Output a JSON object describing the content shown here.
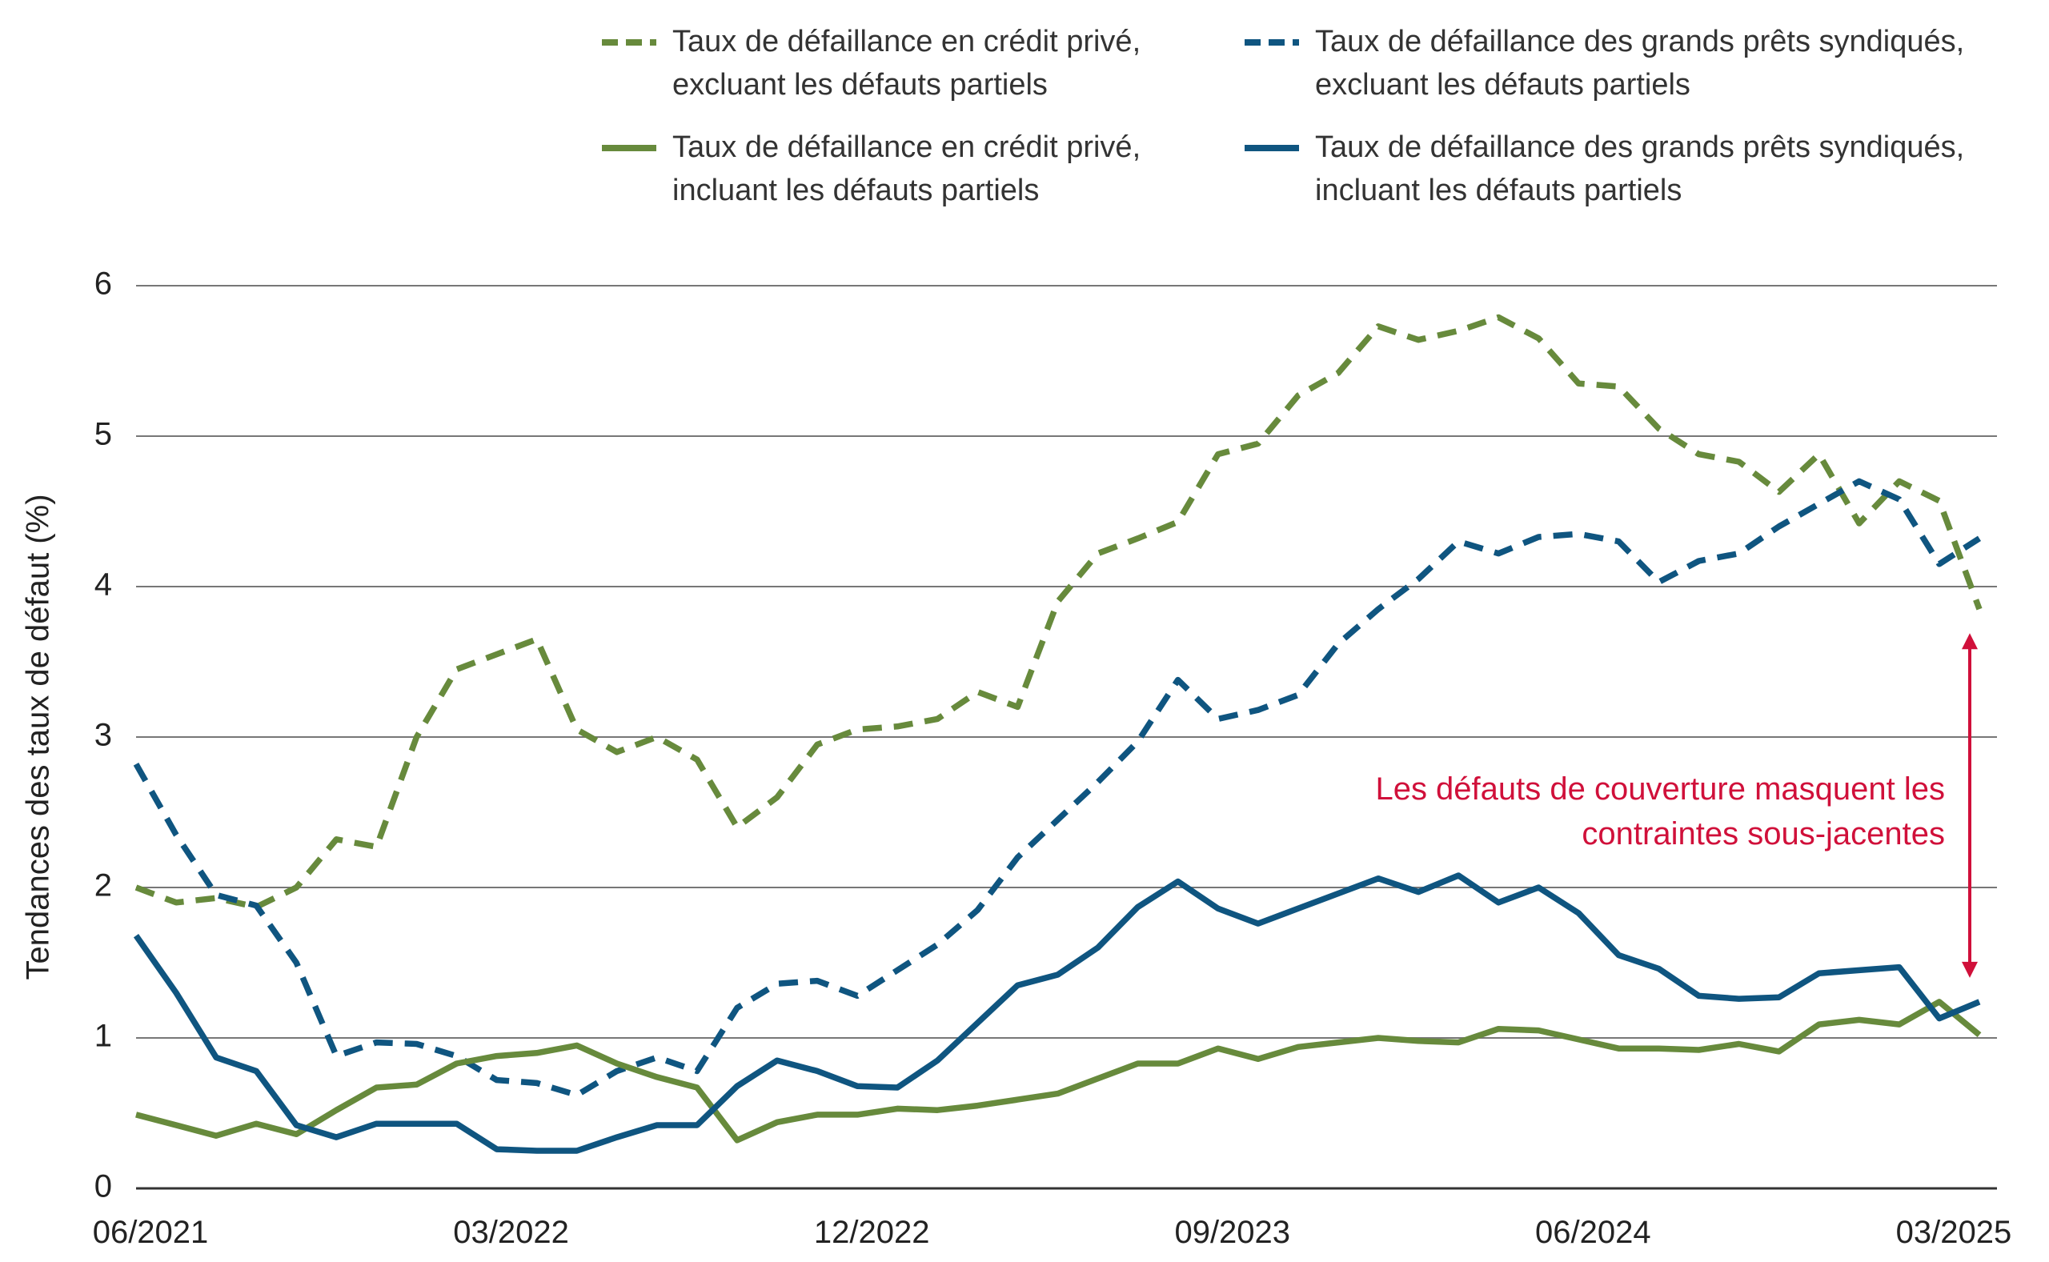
{
  "chart_data": {
    "type": "line",
    "y_label": "Tendances des taux de défaut (%)",
    "annotation": "Les défauts de couverture masquent les contraintes sous-jacentes",
    "categories": [
      "06/2021",
      null,
      null,
      null,
      null,
      null,
      null,
      null,
      null,
      "03/2022",
      null,
      null,
      null,
      null,
      null,
      null,
      null,
      null,
      "12/2022",
      null,
      null,
      null,
      null,
      null,
      null,
      null,
      null,
      "09/2023",
      null,
      null,
      null,
      null,
      null,
      null,
      null,
      null,
      "06/2024",
      null,
      null,
      null,
      null,
      null,
      null,
      null,
      null,
      "03/2025",
      null
    ],
    "ylim": [
      0,
      6
    ],
    "yticks": [
      0,
      1,
      2,
      3,
      4,
      5,
      6
    ],
    "grid": true,
    "series": [
      {
        "name": "Taux de défaillance en crédit privé, excluant les défauts partiels",
        "color": "#678a3c",
        "dashed": true,
        "values": [
          2.0,
          1.9,
          1.93,
          1.87,
          2.0,
          2.32,
          2.27,
          3.0,
          3.45,
          3.55,
          3.65,
          3.05,
          2.9,
          3.0,
          2.85,
          2.4,
          2.6,
          2.95,
          3.05,
          3.07,
          3.12,
          3.3,
          3.2,
          3.9,
          4.22,
          4.32,
          4.43,
          4.88,
          4.95,
          5.27,
          5.42,
          5.73,
          5.64,
          5.7,
          5.79,
          5.65,
          5.35,
          5.33,
          5.05,
          4.88,
          4.83,
          4.63,
          4.88,
          4.42,
          4.7,
          4.57,
          3.85
        ]
      },
      {
        "name": "Taux de défaillance des grands prêts syndiqués, excluant les défauts partiels",
        "color": "#0f5580",
        "dashed": true,
        "values": [
          2.82,
          2.35,
          1.95,
          1.88,
          1.5,
          0.88,
          0.97,
          0.96,
          0.88,
          0.72,
          0.7,
          0.62,
          0.78,
          0.87,
          0.78,
          1.2,
          1.36,
          1.38,
          1.28,
          1.45,
          1.62,
          1.85,
          2.2,
          2.45,
          2.7,
          2.97,
          3.38,
          3.12,
          3.18,
          3.28,
          3.62,
          3.85,
          4.05,
          4.3,
          4.22,
          4.33,
          4.35,
          4.3,
          4.03,
          4.17,
          4.22,
          4.4,
          4.55,
          4.7,
          4.58,
          4.15,
          4.32
        ]
      },
      {
        "name": "Taux de défaillance en crédit privé, incluant les défauts partiels",
        "color": "#678a3c",
        "dashed": false,
        "values": [
          0.49,
          0.42,
          0.35,
          0.43,
          0.36,
          0.52,
          0.67,
          0.69,
          0.83,
          0.88,
          0.9,
          0.95,
          0.83,
          0.74,
          0.67,
          0.32,
          0.44,
          0.49,
          0.49,
          0.53,
          0.52,
          0.55,
          0.59,
          0.63,
          0.73,
          0.83,
          0.83,
          0.93,
          0.86,
          0.94,
          0.97,
          1.0,
          0.98,
          0.97,
          1.06,
          1.05,
          0.99,
          0.93,
          0.93,
          0.92,
          0.96,
          0.91,
          1.09,
          1.12,
          1.09,
          1.24,
          1.02
        ]
      },
      {
        "name": "Taux de défaillance des grands prêts syndiqués, incluant les défauts partiels",
        "color": "#0f5580",
        "dashed": false,
        "values": [
          1.68,
          1.3,
          0.87,
          0.78,
          0.42,
          0.34,
          0.43,
          0.43,
          0.43,
          0.26,
          0.25,
          0.25,
          0.34,
          0.42,
          0.42,
          0.68,
          0.85,
          0.78,
          0.68,
          0.67,
          0.85,
          1.1,
          1.35,
          1.42,
          1.6,
          1.87,
          2.04,
          1.86,
          1.76,
          1.86,
          1.96,
          2.06,
          1.97,
          2.08,
          1.9,
          2.0,
          1.83,
          1.55,
          1.46,
          1.28,
          1.26,
          1.27,
          1.43,
          1.45,
          1.47,
          1.13,
          1.24
        ]
      }
    ]
  }
}
